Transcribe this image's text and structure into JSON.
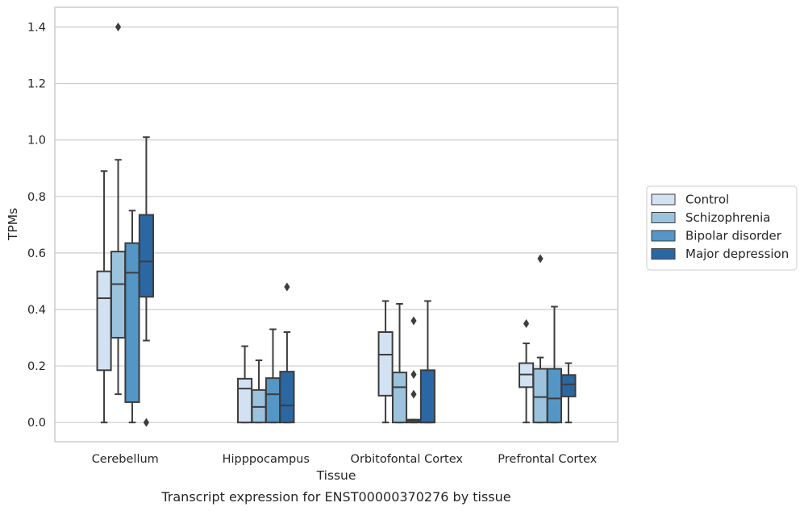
{
  "chart_data": {
    "type": "box",
    "xlabel": "Tissue",
    "ylabel": "TPMs",
    "caption": "Transcript expression for ENST00000370276 by tissue",
    "ylim": [
      -0.068,
      1.47
    ],
    "yticks": [
      "0.0",
      "0.2",
      "0.4",
      "0.6",
      "0.8",
      "1.0",
      "1.2",
      "1.4"
    ],
    "grid": "horizontal",
    "legend_placement": "right",
    "categories": [
      "Cerebellum",
      "Hipppocampus",
      "Orbitofontal Cortex",
      "Prefrontal Cortex"
    ],
    "series": [
      {
        "name": "Control",
        "color": "#d2e2f2",
        "boxes": [
          {
            "whislo": 0.0,
            "q1": 0.185,
            "med": 0.44,
            "q3": 0.535,
            "whishi": 0.89,
            "fliers": []
          },
          {
            "whislo": 0.0,
            "q1": 0.0,
            "med": 0.12,
            "q3": 0.155,
            "whishi": 0.27,
            "fliers": []
          },
          {
            "whislo": 0.0,
            "q1": 0.095,
            "med": 0.24,
            "q3": 0.32,
            "whishi": 0.43,
            "fliers": []
          },
          {
            "whislo": 0.0,
            "q1": 0.125,
            "med": 0.17,
            "q3": 0.21,
            "whishi": 0.28,
            "fliers": [
              0.35
            ]
          }
        ]
      },
      {
        "name": "Schizophrenia",
        "color": "#9cc3dd",
        "boxes": [
          {
            "whislo": 0.1,
            "q1": 0.3,
            "med": 0.49,
            "q3": 0.605,
            "whishi": 0.93,
            "fliers": [
              1.4
            ]
          },
          {
            "whislo": 0.0,
            "q1": 0.0,
            "med": 0.055,
            "q3": 0.115,
            "whishi": 0.22,
            "fliers": []
          },
          {
            "whislo": 0.0,
            "q1": 0.0,
            "med": 0.125,
            "q3": 0.177,
            "whishi": 0.42,
            "fliers": []
          },
          {
            "whislo": 0.0,
            "q1": 0.0,
            "med": 0.09,
            "q3": 0.19,
            "whishi": 0.23,
            "fliers": [
              0.58
            ]
          }
        ]
      },
      {
        "name": "Bipolar disorder",
        "color": "#5496c5",
        "boxes": [
          {
            "whislo": 0.0,
            "q1": 0.072,
            "med": 0.53,
            "q3": 0.635,
            "whishi": 0.75,
            "fliers": []
          },
          {
            "whislo": 0.0,
            "q1": 0.0,
            "med": 0.1,
            "q3": 0.157,
            "whishi": 0.33,
            "fliers": []
          },
          {
            "whislo": 0.0,
            "q1": 0.0,
            "med": 0.005,
            "q3": 0.01,
            "whishi": 0.01,
            "fliers": [
              0.1,
              0.17,
              0.36
            ]
          },
          {
            "whislo": 0.0,
            "q1": 0.0,
            "med": 0.085,
            "q3": 0.19,
            "whishi": 0.41,
            "fliers": []
          }
        ]
      },
      {
        "name": "Major depression",
        "color": "#2b67a2",
        "boxes": [
          {
            "whislo": 0.29,
            "q1": 0.445,
            "med": 0.57,
            "q3": 0.735,
            "whishi": 1.01,
            "fliers": [
              0.0
            ]
          },
          {
            "whislo": 0.0,
            "q1": 0.0,
            "med": 0.06,
            "q3": 0.18,
            "whishi": 0.32,
            "fliers": [
              0.48
            ]
          },
          {
            "whislo": 0.0,
            "q1": 0.0,
            "med": 0.0,
            "q3": 0.185,
            "whishi": 0.43,
            "fliers": []
          },
          {
            "whislo": 0.0,
            "q1": 0.092,
            "med": 0.135,
            "q3": 0.168,
            "whishi": 0.21,
            "fliers": []
          }
        ]
      }
    ]
  }
}
